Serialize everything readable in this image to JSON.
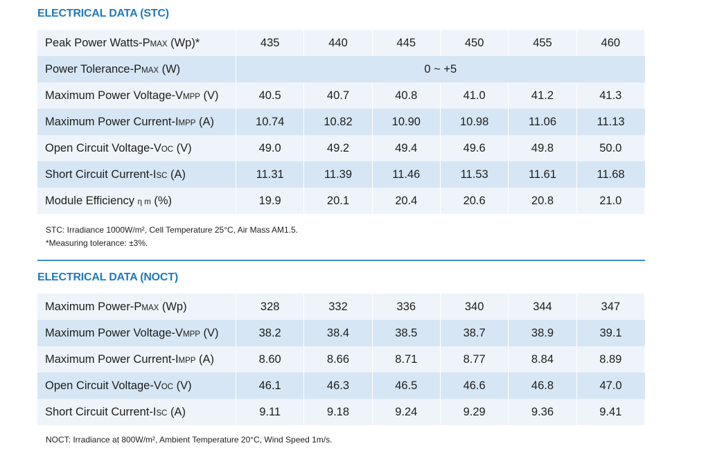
{
  "stc": {
    "title": "ELECTRICAL DATA (STC)",
    "rows": [
      {
        "label_main": "Peak Power Watts-P",
        "label_sub": "MAX",
        "label_tail": " (Wp)*",
        "values": [
          "435",
          "440",
          "445",
          "450",
          "455",
          "460"
        ]
      },
      {
        "label_main": "Power Tolerance-P",
        "label_sub": "MAX",
        "label_tail": " (W)",
        "span_value": "0 ~ +5"
      },
      {
        "label_main": "Maximum Power Voltage-V",
        "label_sub": "MPP",
        "label_tail": " (V)",
        "values": [
          "40.5",
          "40.7",
          "40.8",
          "41.0",
          "41.2",
          "41.3"
        ]
      },
      {
        "label_main": "Maximum Power Current-I",
        "label_sub": "MPP",
        "label_tail": " (A)",
        "values": [
          "10.74",
          "10.82",
          "10.90",
          "10.98",
          "11.06",
          "11.13"
        ]
      },
      {
        "label_main": "Open Circuit Voltage-V",
        "label_sub": "OC",
        "label_tail": " (V)",
        "values": [
          "49.0",
          "49.2",
          "49.4",
          "49.6",
          "49.8",
          "50.0"
        ]
      },
      {
        "label_main": "Short Circuit Current-I",
        "label_sub": "SC",
        "label_tail": " (A)",
        "values": [
          "11.31",
          "11.39",
          "11.46",
          "11.53",
          "11.61",
          "11.68"
        ]
      },
      {
        "label_main": "Module Efficiency ",
        "label_sub": "η m",
        "label_tail": " (%)",
        "values": [
          "19.9",
          "20.1",
          "20.4",
          "20.6",
          "20.8",
          "21.0"
        ]
      }
    ],
    "notes": [
      "STC: Irradiance 1000W/m², Cell Temperature 25°C, Air Mass AM1.5.",
      "*Measuring tolerance: ±3%."
    ]
  },
  "noct": {
    "title": "ELECTRICAL DATA (NOCT)",
    "rows": [
      {
        "label_main": "Maximum Power-P",
        "label_sub": "MAX",
        "label_tail": " (Wp)",
        "values": [
          "328",
          "332",
          "336",
          "340",
          "344",
          "347"
        ]
      },
      {
        "label_main": "Maximum Power Voltage-V",
        "label_sub": "MPP",
        "label_tail": " (V)",
        "values": [
          "38.2",
          "38.4",
          "38.5",
          "38.7",
          "38.9",
          "39.1"
        ]
      },
      {
        "label_main": "Maximum Power Current-I",
        "label_sub": "MPP",
        "label_tail": " (A)",
        "values": [
          "8.60",
          "8.66",
          "8.71",
          "8.77",
          "8.84",
          "8.89"
        ]
      },
      {
        "label_main": "Open Circuit Voltage-V",
        "label_sub": "OC",
        "label_tail": " (V)",
        "values": [
          "46.1",
          "46.3",
          "46.5",
          "46.6",
          "46.8",
          "47.0"
        ]
      },
      {
        "label_main": "Short Circuit Current-I",
        "label_sub": "SC",
        "label_tail": " (A)",
        "values": [
          "9.11",
          "9.18",
          "9.24",
          "9.29",
          "9.36",
          "9.41"
        ]
      }
    ],
    "notes": [
      "NOCT: Irradiance at 800W/m², Ambient Temperature 20°C, Wind Speed 1m/s."
    ]
  },
  "colors": {
    "accent": "#1f79b9",
    "row_light": "#eef4fa",
    "row_dark": "#d6e6f4"
  }
}
